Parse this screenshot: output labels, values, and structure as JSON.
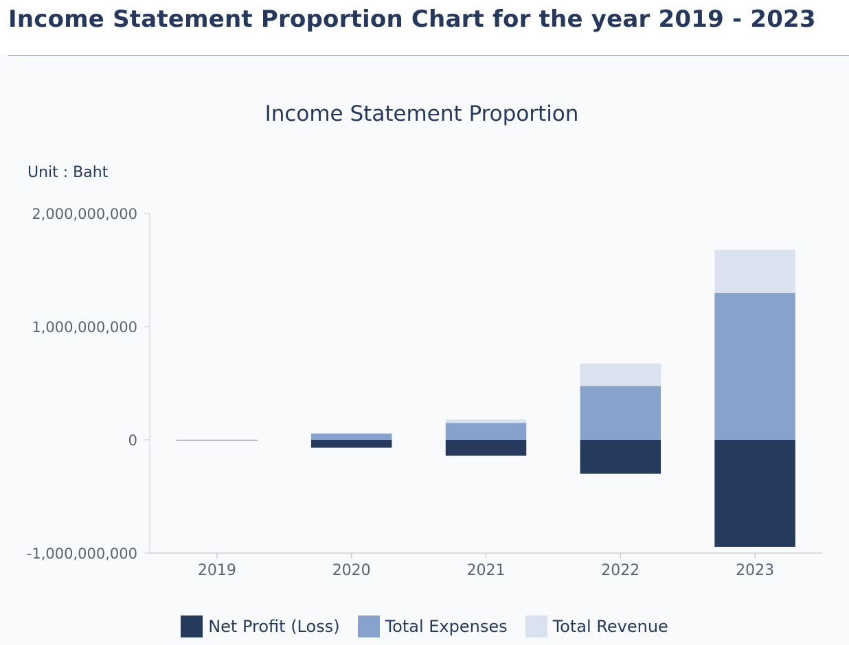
{
  "header": {
    "title": "Income Statement Proportion Chart for the year 2019 - 2023"
  },
  "chart_data": {
    "type": "bar",
    "stacked": true,
    "title": "Income Statement Proportion",
    "unit_label": "Unit : Baht",
    "categories": [
      "2019",
      "2020",
      "2021",
      "2022",
      "2023"
    ],
    "ylim": [
      -1000000000,
      2000000000
    ],
    "yticks": [
      -1000000000,
      0,
      1000000000,
      2000000000
    ],
    "ytick_labels": [
      "-1,000,000,000",
      "0",
      "1,000,000,000",
      "2,000,000,000"
    ],
    "grid": false,
    "legend_position": "bottom",
    "series": [
      {
        "name": "Net Profit (Loss)",
        "color": "#263a5e",
        "values": [
          -3000000,
          -70000000,
          -140000000,
          -300000000,
          -945000000
        ]
      },
      {
        "name": "Total Expenses",
        "color": "#86a2cd",
        "values": [
          3000000,
          55000000,
          150000000,
          475000000,
          1297000000
        ]
      },
      {
        "name": "Total Revenue",
        "color": "#dbe2ef",
        "values": [
          1000000,
          6000000,
          30000000,
          200000000,
          382000000
        ]
      }
    ]
  }
}
